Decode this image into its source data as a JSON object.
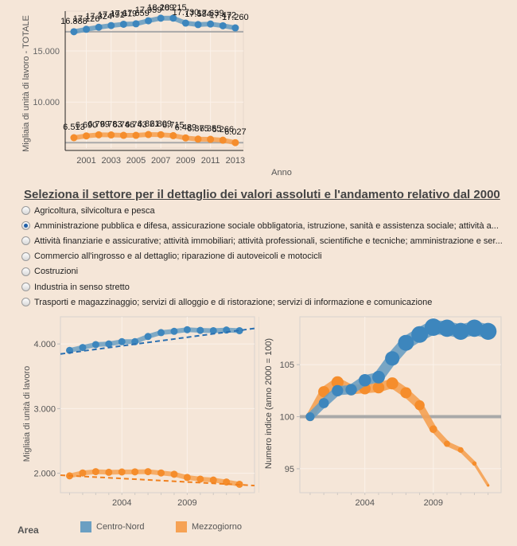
{
  "colors": {
    "background": "#f5e6d8",
    "centro_nord": "#6b9fc2",
    "centro_nord_point": "#3d86bd",
    "mezzogiorno": "#f6a254",
    "mezzogiorno_point": "#f58d2c",
    "trend_blue": "#2a6fb0",
    "trend_orange": "#f0801e",
    "reference_line": "#a9a9a9"
  },
  "heading": "Seleziona il settore per il dettaglio dei valori assoluti e l'andamento relativo dal 2000",
  "sectors": [
    {
      "label": "Agricoltura, silvicoltura e pesca",
      "checked": false
    },
    {
      "label": "Amministrazione pubblica e difesa, assicurazione sociale obbligatoria, istruzione, sanità e assistenza sociale; attività a...",
      "checked": true
    },
    {
      "label": "Attività finanziarie e assicurative; attività immobiliari; attività professionali, scientifiche e tecniche; amministrazione e ser...",
      "checked": false
    },
    {
      "label": "Commercio all'ingrosso e al dettaglio; riparazione di autoveicoli e motocicli",
      "checked": false
    },
    {
      "label": "Costruzioni",
      "checked": false
    },
    {
      "label": "Industria in senso stretto",
      "checked": false
    },
    {
      "label": "Trasporti e magazzinaggio; servizi di alloggio e di ristorazione; servizi di informazione e comunicazione",
      "checked": false
    }
  ],
  "legend": {
    "title": "Area",
    "items": [
      {
        "label": "Centro-Nord",
        "color": "#6b9fc2"
      },
      {
        "label": "Mezzogiorno",
        "color": "#f6a254"
      }
    ]
  },
  "chart_data": [
    {
      "id": "totale",
      "type": "line",
      "title": "",
      "xlabel": "Anno",
      "ylabel": "Migliaia di unità di lavoro - TOTALE",
      "x": [
        2000,
        2001,
        2002,
        2003,
        2004,
        2005,
        2006,
        2007,
        2008,
        2009,
        2010,
        2011,
        2012,
        2013
      ],
      "xticks": [
        "2001",
        "2003",
        "2005",
        "2007",
        "2009",
        "2011",
        "2013"
      ],
      "yticks": [
        "10.000",
        "15.000"
      ],
      "ylim": [
        5500,
        18900
      ],
      "grid": true,
      "series": [
        {
          "name": "Centro-Nord",
          "values": [
            16888,
            17126,
            17324,
            17491,
            17619,
            17659,
            17959,
            18209,
            18215,
            17730,
            17584,
            17639,
            17472,
            17260
          ],
          "labels": [
            "16.888",
            "17.126",
            "17.324",
            "17.491",
            "17.619",
            "17.659",
            "17.959",
            "18.209",
            "18.215",
            "17.730",
            "17.584",
            "17.639",
            "17.472",
            "17.260"
          ]
        },
        {
          "name": "Mezzogiorno",
          "values": [
            6513,
            6690,
            6799,
            6783,
            6746,
            6743,
            6821,
            6809,
            6715,
            6489,
            6375,
            6355,
            6266,
            6027
          ],
          "labels": [
            "6.513",
            "6.690",
            "6.799",
            "6.783",
            "6.746",
            "6.743",
            "6.821",
            "6.809",
            "6.715",
            "6.489",
            "6.375",
            "6.355",
            "6.266",
            "6.027"
          ]
        }
      ],
      "reference_lines": [
        16888,
        6027
      ]
    },
    {
      "id": "assoluti",
      "type": "line",
      "title": "",
      "xlabel": "",
      "ylabel": "Migliaia di unità di lavoro",
      "x": [
        2000,
        2001,
        2002,
        2003,
        2004,
        2005,
        2006,
        2007,
        2008,
        2009,
        2010,
        2011,
        2012,
        2013
      ],
      "xticks": [
        "2004",
        "2009"
      ],
      "yticks": [
        "2.000",
        "3.000",
        "4.000"
      ],
      "ylim": [
        1700,
        4420
      ],
      "grid": true,
      "series": [
        {
          "name": "Centro-Nord",
          "values": [
            3900,
            3945,
            3990,
            4000,
            4035,
            4035,
            4115,
            4175,
            4195,
            4220,
            4210,
            4205,
            4215,
            4205
          ]
        },
        {
          "name": "Mezzogiorno",
          "values": [
            1960,
            2005,
            2025,
            2015,
            2020,
            2022,
            2025,
            2005,
            1985,
            1935,
            1910,
            1895,
            1865,
            1830
          ]
        }
      ],
      "trend_lines": [
        {
          "name": "Centro-Nord",
          "x": [
            1999.3,
            2014.3
          ],
          "values": [
            3845,
            4240
          ]
        },
        {
          "name": "Mezzogiorno",
          "x": [
            1999.3,
            2014.3
          ],
          "values": [
            1970,
            1810
          ]
        }
      ]
    },
    {
      "id": "indice",
      "type": "line",
      "title": "",
      "xlabel": "",
      "ylabel": "Numero indice (anno 2000 = 100)",
      "x": [
        2000,
        2001,
        2002,
        2003,
        2004,
        2005,
        2006,
        2007,
        2008,
        2009,
        2010,
        2011,
        2012,
        2013
      ],
      "xticks": [
        "2004",
        "2009"
      ],
      "yticks": [
        "95",
        "100",
        "105"
      ],
      "ylim": [
        92.7,
        109.6
      ],
      "grid": true,
      "series": [
        {
          "name": "Centro-Nord",
          "values": [
            100.0,
            101.3,
            102.5,
            102.6,
            103.5,
            103.8,
            105.6,
            107.1,
            107.9,
            108.6,
            108.5,
            108.2,
            108.5,
            108.2
          ]
        },
        {
          "name": "Mezzogiorno",
          "values": [
            100.0,
            102.4,
            103.3,
            102.6,
            102.7,
            102.8,
            103.2,
            102.3,
            101.1,
            98.8,
            97.4,
            96.8,
            95.5,
            93.4
          ]
        }
      ],
      "reference_lines": [
        100
      ]
    }
  ]
}
